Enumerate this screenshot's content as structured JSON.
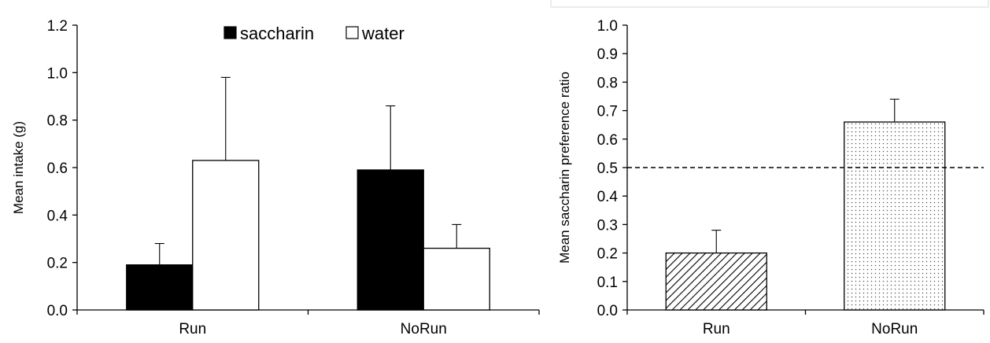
{
  "chart_data": [
    {
      "type": "bar",
      "categories": [
        "Run",
        "NoRun"
      ],
      "series": [
        {
          "name": "saccharin",
          "values": [
            0.19,
            0.59
          ],
          "errors": [
            0.09,
            0.27
          ],
          "color": "#000000"
        },
        {
          "name": "water",
          "values": [
            0.63,
            0.26
          ],
          "errors": [
            0.35,
            0.1
          ],
          "color": "#ffffff"
        }
      ],
      "ylabel": "Mean intake (g)",
      "ylim": [
        0,
        1.2
      ],
      "yticks": [
        "0.0",
        "0.2",
        "0.4",
        "0.6",
        "0.8",
        "1.0",
        "1.2"
      ],
      "grid": false,
      "legend_placement": "top-center"
    },
    {
      "type": "bar",
      "categories": [
        "Run",
        "NoRun"
      ],
      "values": [
        0.2,
        0.66
      ],
      "errors": [
        0.08,
        0.08
      ],
      "fills": [
        "diagonal-hatch",
        "dotted"
      ],
      "ylabel": "Mean saccharin preference ratio",
      "ylim": [
        0,
        1.0
      ],
      "yticks": [
        "0.0",
        "0.1",
        "0.2",
        "0.3",
        "0.4",
        "0.5",
        "0.6",
        "0.7",
        "0.8",
        "0.9",
        "1.0"
      ],
      "reference_line": 0.5,
      "grid": false
    }
  ]
}
